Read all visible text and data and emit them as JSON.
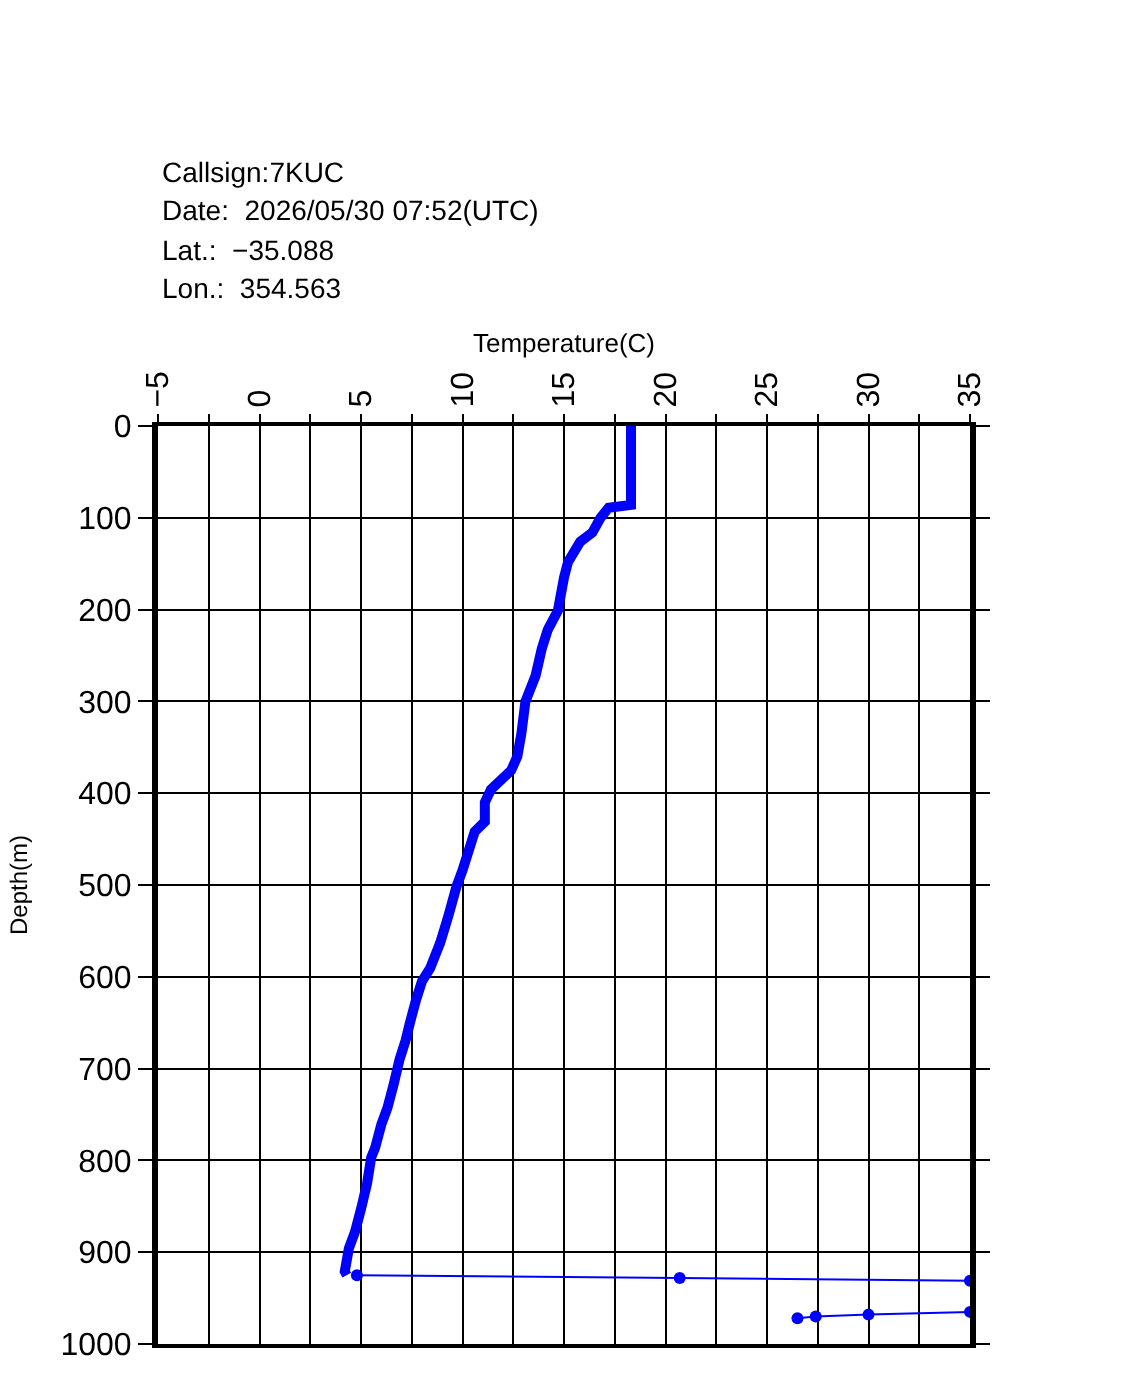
{
  "chart_data": {
    "type": "line",
    "annotations": [
      "Callsign:7KUC",
      "Date:  2026/05/30 07:52(UTC)",
      "Lat.:  −35.088",
      "Lon.:  354.563"
    ],
    "xlabel": "Temperature(C)",
    "ylabel": "Depth(m)",
    "series": [
      {
        "color": "#0000ff",
        "x": [
          18.3,
          18.3,
          17.2,
          16.8,
          16.4,
          15.8,
          15.2,
          15.0,
          14.7,
          14.2,
          13.9,
          13.6,
          13.1,
          12.9,
          12.7,
          12.4,
          11.4,
          11.1,
          11.1,
          10.6,
          10.3,
          10.0,
          9.7,
          9.3,
          8.9,
          8.4,
          8.0,
          7.7,
          7.4,
          7.2,
          6.9,
          6.6,
          6.3,
          6.0,
          5.7,
          5.5,
          5.3,
          5.0,
          4.7,
          4.4,
          4.2,
          4.3
        ],
        "values": [
          0,
          86,
          89,
          100,
          116,
          126,
          148,
          165,
          201,
          222,
          243,
          272,
          300,
          335,
          360,
          375,
          396,
          410,
          431,
          442,
          463,
          484,
          502,
          534,
          563,
          591,
          605,
          626,
          651,
          669,
          690,
          718,
          743,
          761,
          786,
          797,
          825,
          853,
          878,
          896,
          921,
          925
        ]
      },
      {
        "color": "#0000ff",
        "marker": "circle",
        "x": [
          4.8,
          20.7,
          35,
          null,
          26.5,
          27.4,
          30.0,
          35
        ],
        "values": [
          925,
          928,
          931,
          null,
          972,
          970,
          968,
          965
        ]
      }
    ],
    "xlim": [
      -5,
      35
    ],
    "xticks": [
      {
        "value": -5,
        "label": "−5"
      },
      {
        "value": -2.5,
        "label": null
      },
      0,
      {
        "value": 2.5,
        "label": null
      },
      5,
      {
        "value": 7.5,
        "label": null
      },
      10,
      {
        "value": 12.5,
        "label": null
      },
      15,
      {
        "value": 17.5,
        "label": null
      },
      20,
      {
        "value": 22.5,
        "label": null
      },
      25,
      {
        "value": 27.5,
        "label": null
      },
      30,
      {
        "value": 32.5,
        "label": null
      },
      35
    ],
    "ylim": [
      1000,
      0
    ],
    "yticks": [
      0,
      100,
      200,
      300,
      400,
      500,
      600,
      700,
      800,
      900,
      1000
    ],
    "grid": true
  }
}
